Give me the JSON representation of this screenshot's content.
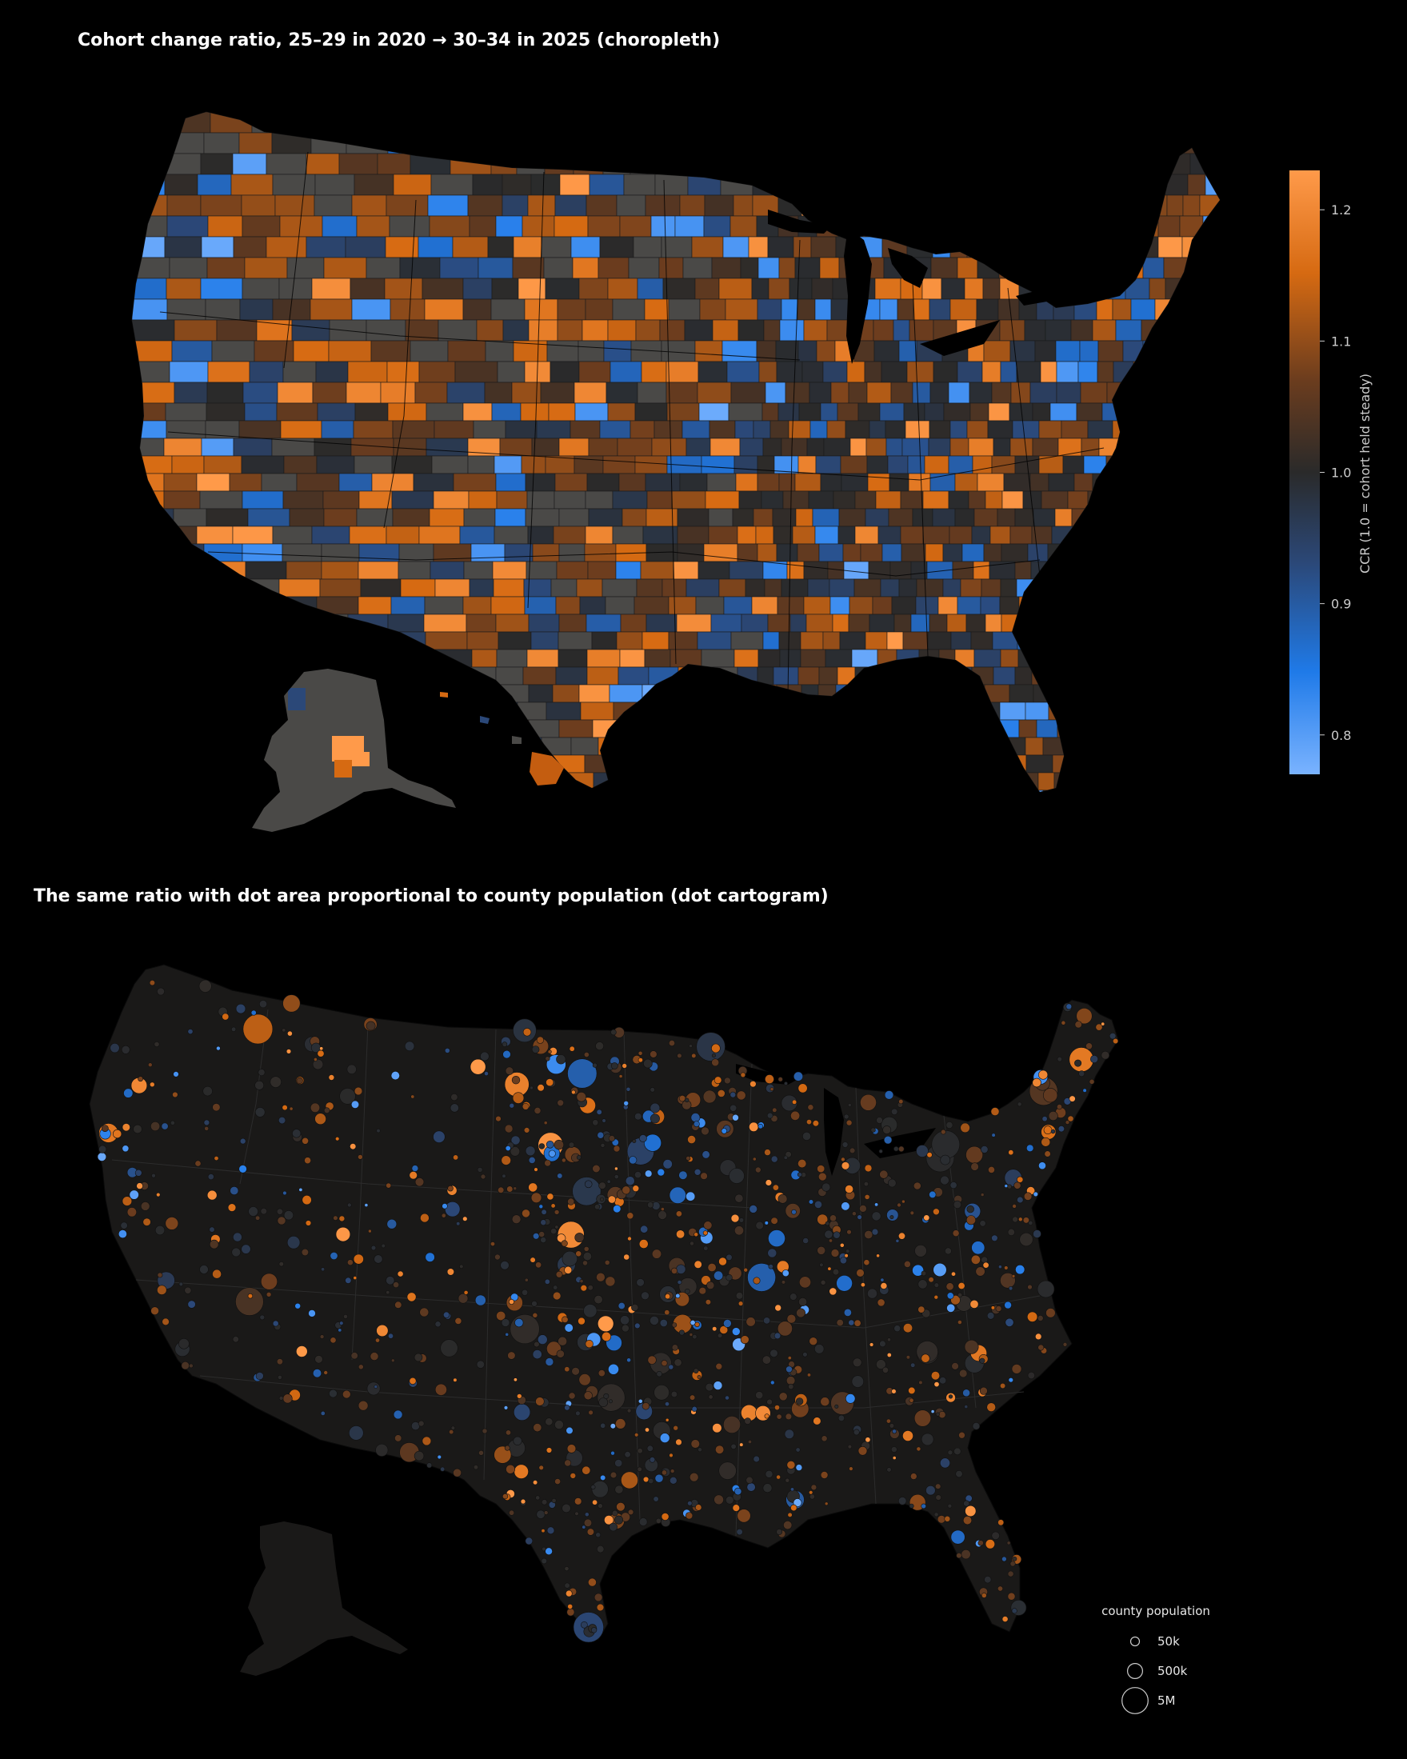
{
  "map1": {
    "title": "Cohort change ratio, 25–29 in 2020 → 30–34 in 2025 (choropleth)",
    "colorbar": {
      "label": "CCR  (1.0 = cohort held steady)",
      "ticks": [
        "0.8",
        "0.9",
        "1.0",
        "1.1",
        "1.2"
      ],
      "tick_values": [
        0.8,
        0.9,
        1.0,
        1.1,
        1.2
      ],
      "range": [
        0.77,
        1.23
      ],
      "colors": [
        "#7ab3ff",
        "#1f7ae8",
        "#2b4878",
        "#2a2a2a",
        "#6a3c1e",
        "#d66a12",
        "#ff9a4a"
      ]
    }
  },
  "map2": {
    "title": "The same ratio with dot area proportional to county population (dot cartogram)",
    "legend": {
      "title": "county population",
      "items": [
        {
          "label": "50k",
          "population": 50000
        },
        {
          "label": "500k",
          "population": 500000
        },
        {
          "label": "5M",
          "population": 5000000
        }
      ]
    }
  },
  "colors": {
    "background": "#000000",
    "land_grey": "#4a4947",
    "land_dark": "#1a1918",
    "orange_high": "#ff9a4a",
    "blue_low": "#1f7ae8"
  }
}
